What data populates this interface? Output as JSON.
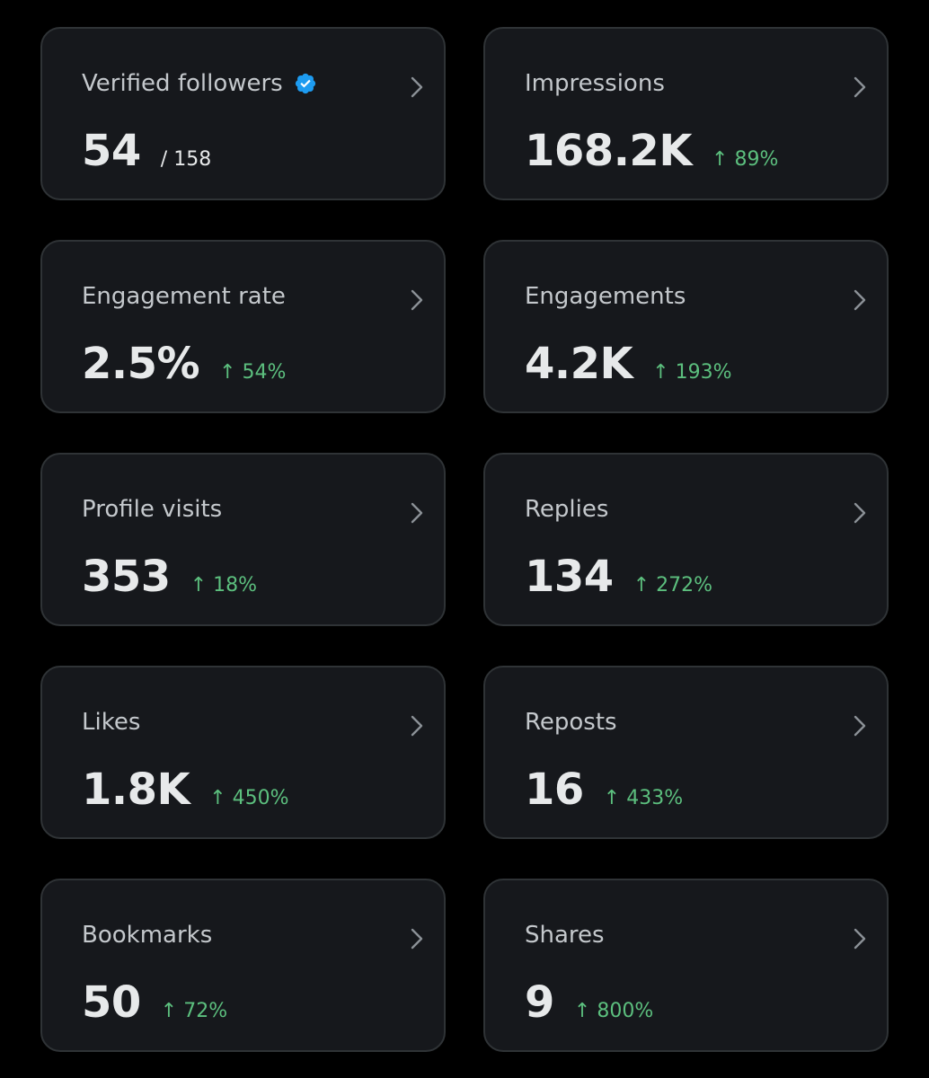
{
  "colors": {
    "background": "#000000",
    "card": "#16181c",
    "border": "#2f3336",
    "positive": "#5cbf7e",
    "verified": "#1d9bf0"
  },
  "icons": {
    "verified": "verified-badge-icon",
    "chevron": "chevron-right-icon",
    "trend": "arrow-up-icon"
  },
  "cards": [
    {
      "title": "Verified followers",
      "value": "54",
      "total": "/ 158",
      "change": ""
    },
    {
      "title": "Impressions",
      "value": "168.2K",
      "change": "↑ 89%"
    },
    {
      "title": "Engagement rate",
      "value": "2.5%",
      "change": "↑ 54%"
    },
    {
      "title": "Engagements",
      "value": "4.2K",
      "change": "↑ 193%"
    },
    {
      "title": "Profile visits",
      "value": "353",
      "change": "↑ 18%"
    },
    {
      "title": "Replies",
      "value": "134",
      "change": "↑ 272%"
    },
    {
      "title": "Likes",
      "value": "1.8K",
      "change": "↑ 450%"
    },
    {
      "title": "Reposts",
      "value": "16",
      "change": "↑ 433%"
    },
    {
      "title": "Bookmarks",
      "value": "50",
      "change": "↑ 72%"
    },
    {
      "title": "Shares",
      "value": "9",
      "change": "↑ 800%"
    }
  ]
}
